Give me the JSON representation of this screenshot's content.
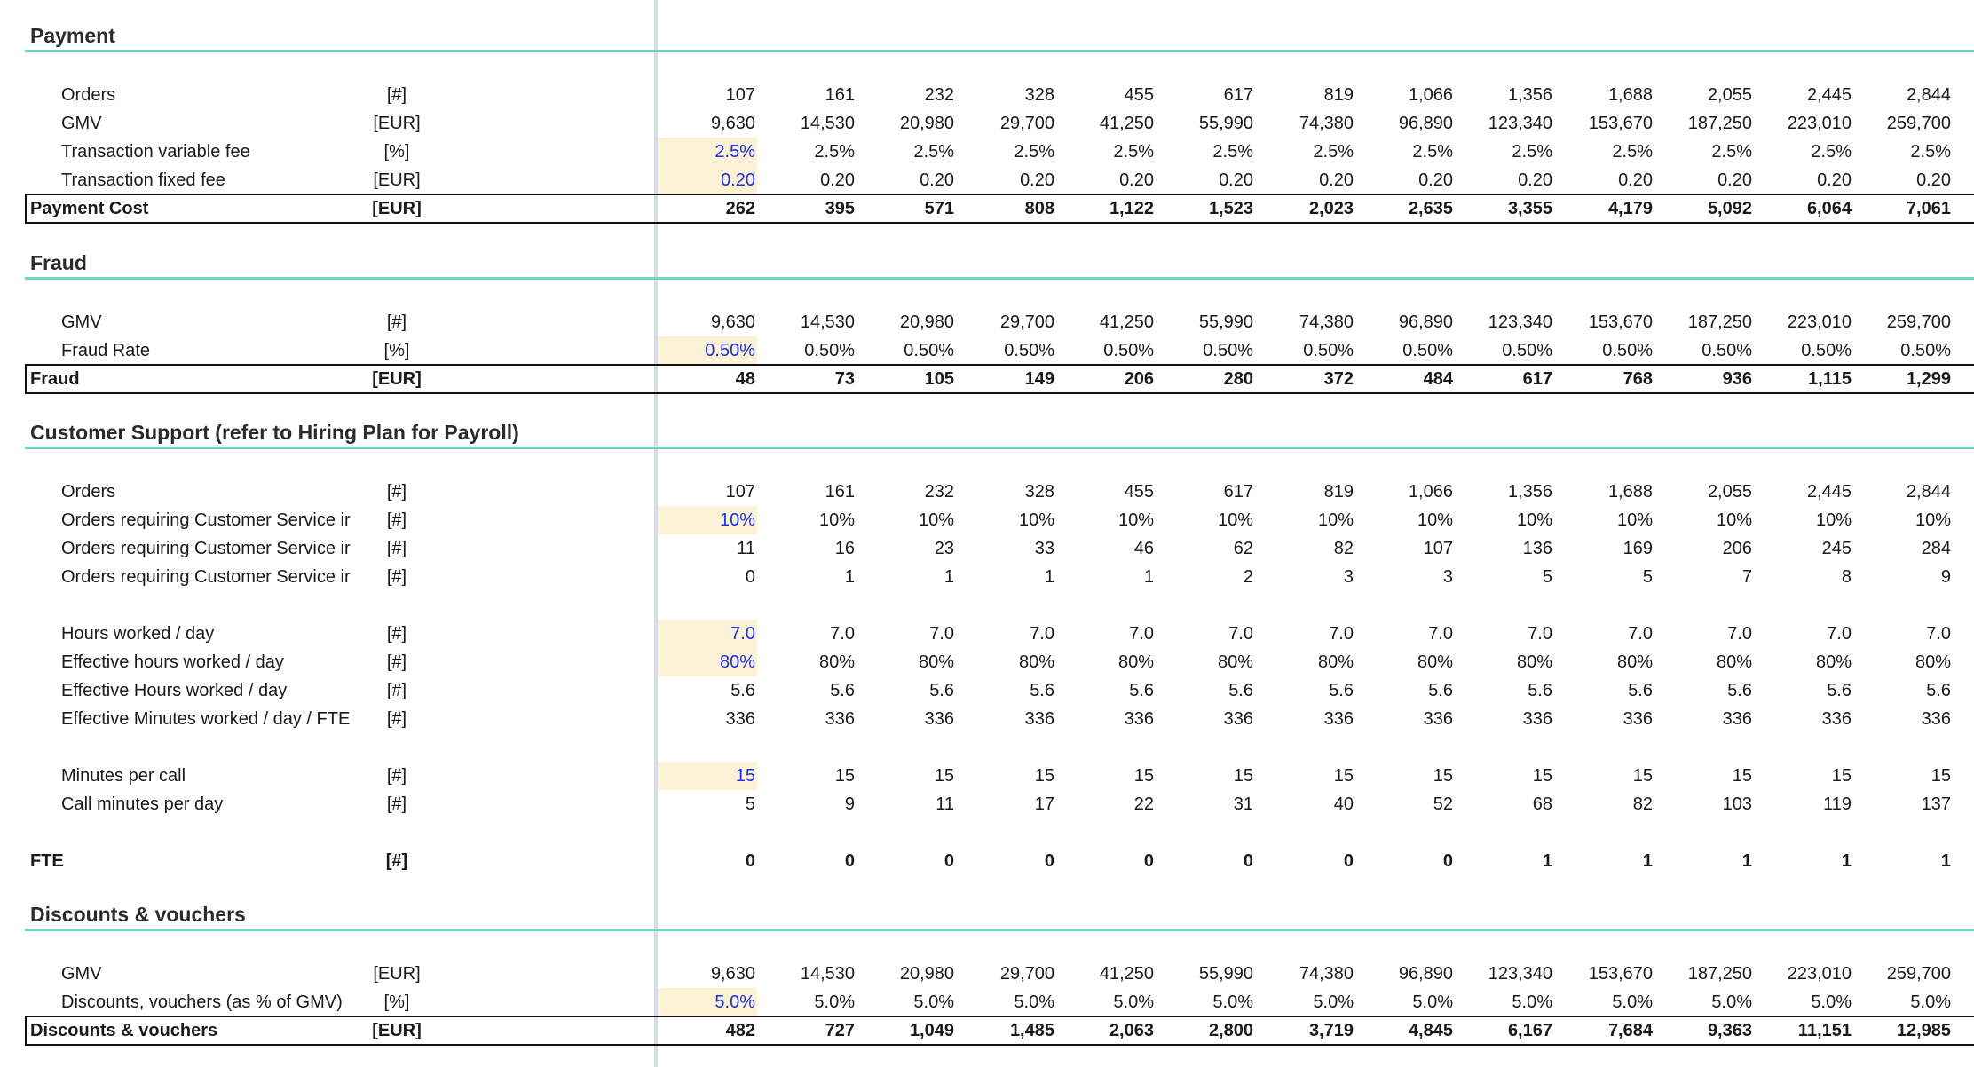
{
  "sections": [
    {
      "title": "Payment",
      "rows": [
        {
          "label": "Orders",
          "unit": "[#]",
          "values": [
            "107",
            "161",
            "232",
            "328",
            "455",
            "617",
            "819",
            "1,066",
            "1,356",
            "1,688",
            "2,055",
            "2,445",
            "2,844"
          ]
        },
        {
          "label": "GMV",
          "unit": "[EUR]",
          "values": [
            "9,630",
            "14,530",
            "20,980",
            "29,700",
            "41,250",
            "55,990",
            "74,380",
            "96,890",
            "123,340",
            "153,670",
            "187,250",
            "223,010",
            "259,700"
          ]
        },
        {
          "label": "Transaction variable fee",
          "unit": "[%]",
          "input": true,
          "values": [
            "2.5%",
            "2.5%",
            "2.5%",
            "2.5%",
            "2.5%",
            "2.5%",
            "2.5%",
            "2.5%",
            "2.5%",
            "2.5%",
            "2.5%",
            "2.5%",
            "2.5%"
          ]
        },
        {
          "label": "Transaction fixed fee",
          "unit": "[EUR]",
          "input": true,
          "values": [
            "0.20",
            "0.20",
            "0.20",
            "0.20",
            "0.20",
            "0.20",
            "0.20",
            "0.20",
            "0.20",
            "0.20",
            "0.20",
            "0.20",
            "0.20"
          ]
        },
        {
          "label": "Payment Cost",
          "unit": "[EUR]",
          "total": true,
          "values": [
            "262",
            "395",
            "571",
            "808",
            "1,122",
            "1,523",
            "2,023",
            "2,635",
            "3,355",
            "4,179",
            "5,092",
            "6,064",
            "7,061"
          ]
        }
      ]
    },
    {
      "title": "Fraud",
      "rows": [
        {
          "label": "GMV",
          "unit": "[#]",
          "values": [
            "9,630",
            "14,530",
            "20,980",
            "29,700",
            "41,250",
            "55,990",
            "74,380",
            "96,890",
            "123,340",
            "153,670",
            "187,250",
            "223,010",
            "259,700"
          ]
        },
        {
          "label": "Fraud Rate",
          "unit": "[%]",
          "input": true,
          "values": [
            "0.50%",
            "0.50%",
            "0.50%",
            "0.50%",
            "0.50%",
            "0.50%",
            "0.50%",
            "0.50%",
            "0.50%",
            "0.50%",
            "0.50%",
            "0.50%",
            "0.50%"
          ]
        },
        {
          "label": "Fraud",
          "unit": "[EUR]",
          "total": true,
          "values": [
            "48",
            "73",
            "105",
            "149",
            "206",
            "280",
            "372",
            "484",
            "617",
            "768",
            "936",
            "1,115",
            "1,299"
          ]
        }
      ]
    },
    {
      "title": "Customer Support (refer to Hiring Plan for Payroll)",
      "rows": [
        {
          "label": "Orders",
          "unit": "[#]",
          "values": [
            "107",
            "161",
            "232",
            "328",
            "455",
            "617",
            "819",
            "1,066",
            "1,356",
            "1,688",
            "2,055",
            "2,445",
            "2,844"
          ]
        },
        {
          "label": "Orders requiring Customer Service ir",
          "unit": "[#]",
          "input": true,
          "values": [
            "10%",
            "10%",
            "10%",
            "10%",
            "10%",
            "10%",
            "10%",
            "10%",
            "10%",
            "10%",
            "10%",
            "10%",
            "10%"
          ]
        },
        {
          "label": "Orders requiring Customer Service ir",
          "unit": "[#]",
          "values": [
            "11",
            "16",
            "23",
            "33",
            "46",
            "62",
            "82",
            "107",
            "136",
            "169",
            "206",
            "245",
            "284"
          ]
        },
        {
          "label": "Orders requiring Customer Service ir",
          "unit": "[#]",
          "values": [
            "0",
            "1",
            "1",
            "1",
            "1",
            "2",
            "3",
            "3",
            "5",
            "5",
            "7",
            "8",
            "9"
          ]
        },
        {
          "label": "Hours worked / day",
          "unit": "[#]",
          "input": true,
          "values": [
            "7.0",
            "7.0",
            "7.0",
            "7.0",
            "7.0",
            "7.0",
            "7.0",
            "7.0",
            "7.0",
            "7.0",
            "7.0",
            "7.0",
            "7.0"
          ]
        },
        {
          "label": "Effective hours worked / day",
          "unit": "[#]",
          "input": true,
          "values": [
            "80%",
            "80%",
            "80%",
            "80%",
            "80%",
            "80%",
            "80%",
            "80%",
            "80%",
            "80%",
            "80%",
            "80%",
            "80%"
          ]
        },
        {
          "label": "Effective Hours worked / day",
          "unit": "[#]",
          "values": [
            "5.6",
            "5.6",
            "5.6",
            "5.6",
            "5.6",
            "5.6",
            "5.6",
            "5.6",
            "5.6",
            "5.6",
            "5.6",
            "5.6",
            "5.6"
          ]
        },
        {
          "label": "Effective Minutes worked / day / FTE",
          "unit": "[#]",
          "values": [
            "336",
            "336",
            "336",
            "336",
            "336",
            "336",
            "336",
            "336",
            "336",
            "336",
            "336",
            "336",
            "336"
          ]
        },
        {
          "label": "Minutes per call",
          "unit": "[#]",
          "input": true,
          "values": [
            "15",
            "15",
            "15",
            "15",
            "15",
            "15",
            "15",
            "15",
            "15",
            "15",
            "15",
            "15",
            "15"
          ]
        },
        {
          "label": "Call minutes per day",
          "unit": "[#]",
          "values": [
            "5",
            "9",
            "11",
            "17",
            "22",
            "31",
            "40",
            "52",
            "68",
            "82",
            "103",
            "119",
            "137"
          ]
        },
        {
          "label": "FTE",
          "unit": "[#]",
          "strong": true,
          "values": [
            "0",
            "0",
            "0",
            "0",
            "0",
            "0",
            "0",
            "0",
            "1",
            "1",
            "1",
            "1",
            "1"
          ]
        }
      ]
    },
    {
      "title": "Discounts & vouchers",
      "rows": [
        {
          "label": "GMV",
          "unit": "[EUR]",
          "values": [
            "9,630",
            "14,530",
            "20,980",
            "29,700",
            "41,250",
            "55,990",
            "74,380",
            "96,890",
            "123,340",
            "153,670",
            "187,250",
            "223,010",
            "259,700"
          ]
        },
        {
          "label": "Discounts, vouchers (as % of GMV)",
          "unit": "[%]",
          "input": true,
          "values": [
            "5.0%",
            "5.0%",
            "5.0%",
            "5.0%",
            "5.0%",
            "5.0%",
            "5.0%",
            "5.0%",
            "5.0%",
            "5.0%",
            "5.0%",
            "5.0%",
            "5.0%"
          ]
        },
        {
          "label": "Discounts & vouchers",
          "unit": "[EUR]",
          "total": true,
          "values": [
            "482",
            "727",
            "1,049",
            "1,485",
            "2,063",
            "2,800",
            "3,719",
            "4,845",
            "6,167",
            "7,684",
            "9,363",
            "11,151",
            "12,985"
          ]
        }
      ]
    }
  ]
}
